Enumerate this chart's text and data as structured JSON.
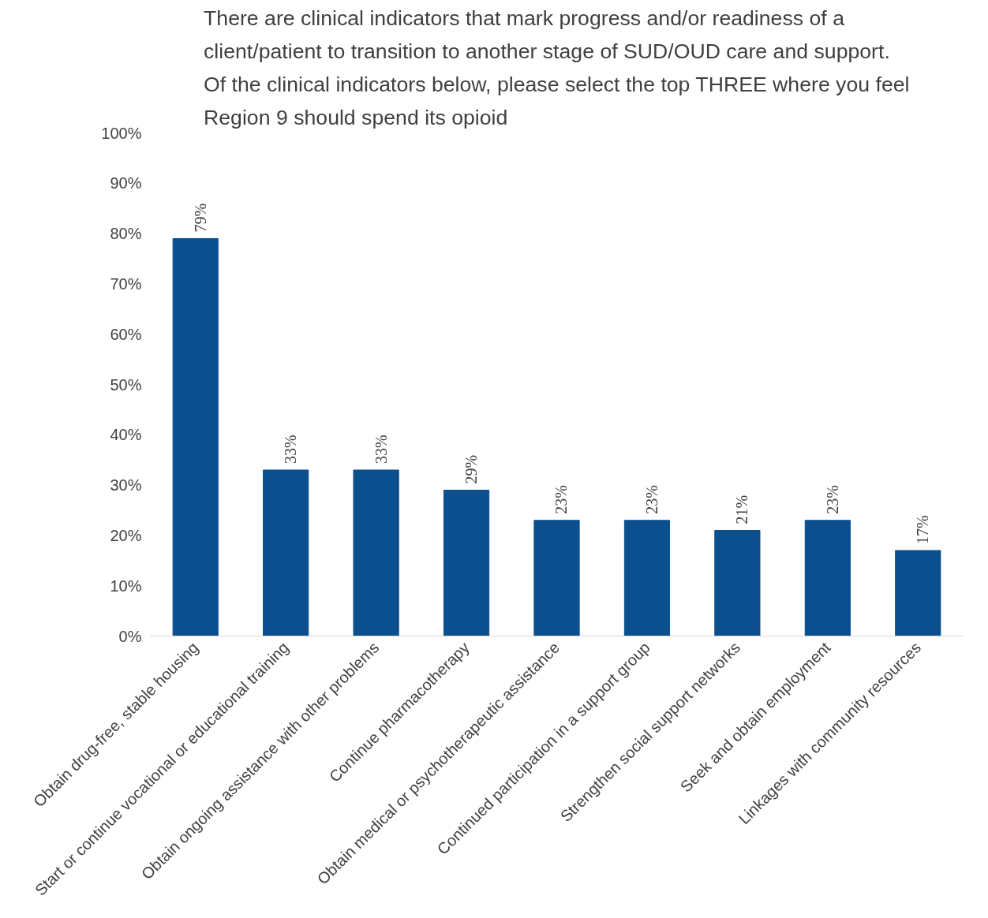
{
  "chart_data": {
    "type": "bar",
    "title": "There are clinical indicators that mark progress and/or readiness of a\nclient/patient to transition to another stage of SUD/OUD care and support.\nOf the clinical indicators below, please select the top THREE where you feel\nRegion 9 should spend its opioid",
    "categories": [
      "Obtain drug-free, stable housing",
      "Start or continue vocational or educational training",
      "Obtain ongoing assistance with other problems",
      "Continue pharmacotherapy",
      "Obtain medical or psychotherapeutic assistance",
      "Continued participation in a support group",
      "Strengthen social support networks",
      "Seek and obtain employment",
      "Linkages with community resources"
    ],
    "values": [
      79,
      33,
      33,
      29,
      23,
      23,
      21,
      23,
      17
    ],
    "value_labels": [
      "79%",
      "33%",
      "33%",
      "29%",
      "23%",
      "23%",
      "21%",
      "23%",
      "17%"
    ],
    "color": "#0c4f8f",
    "ylim": [
      0,
      100
    ],
    "yticks": [
      {
        "value": 0,
        "label": "0%"
      },
      {
        "value": 10,
        "label": "10%"
      },
      {
        "value": 20,
        "label": "20%"
      },
      {
        "value": 30,
        "label": "30%"
      },
      {
        "value": 40,
        "label": "40%"
      },
      {
        "value": 50,
        "label": "50%"
      },
      {
        "value": 60,
        "label": "60%"
      },
      {
        "value": 70,
        "label": "70%"
      },
      {
        "value": 80,
        "label": "80%"
      },
      {
        "value": 90,
        "label": "90%"
      },
      {
        "value": 100,
        "label": "100%"
      }
    ],
    "grid": false
  }
}
